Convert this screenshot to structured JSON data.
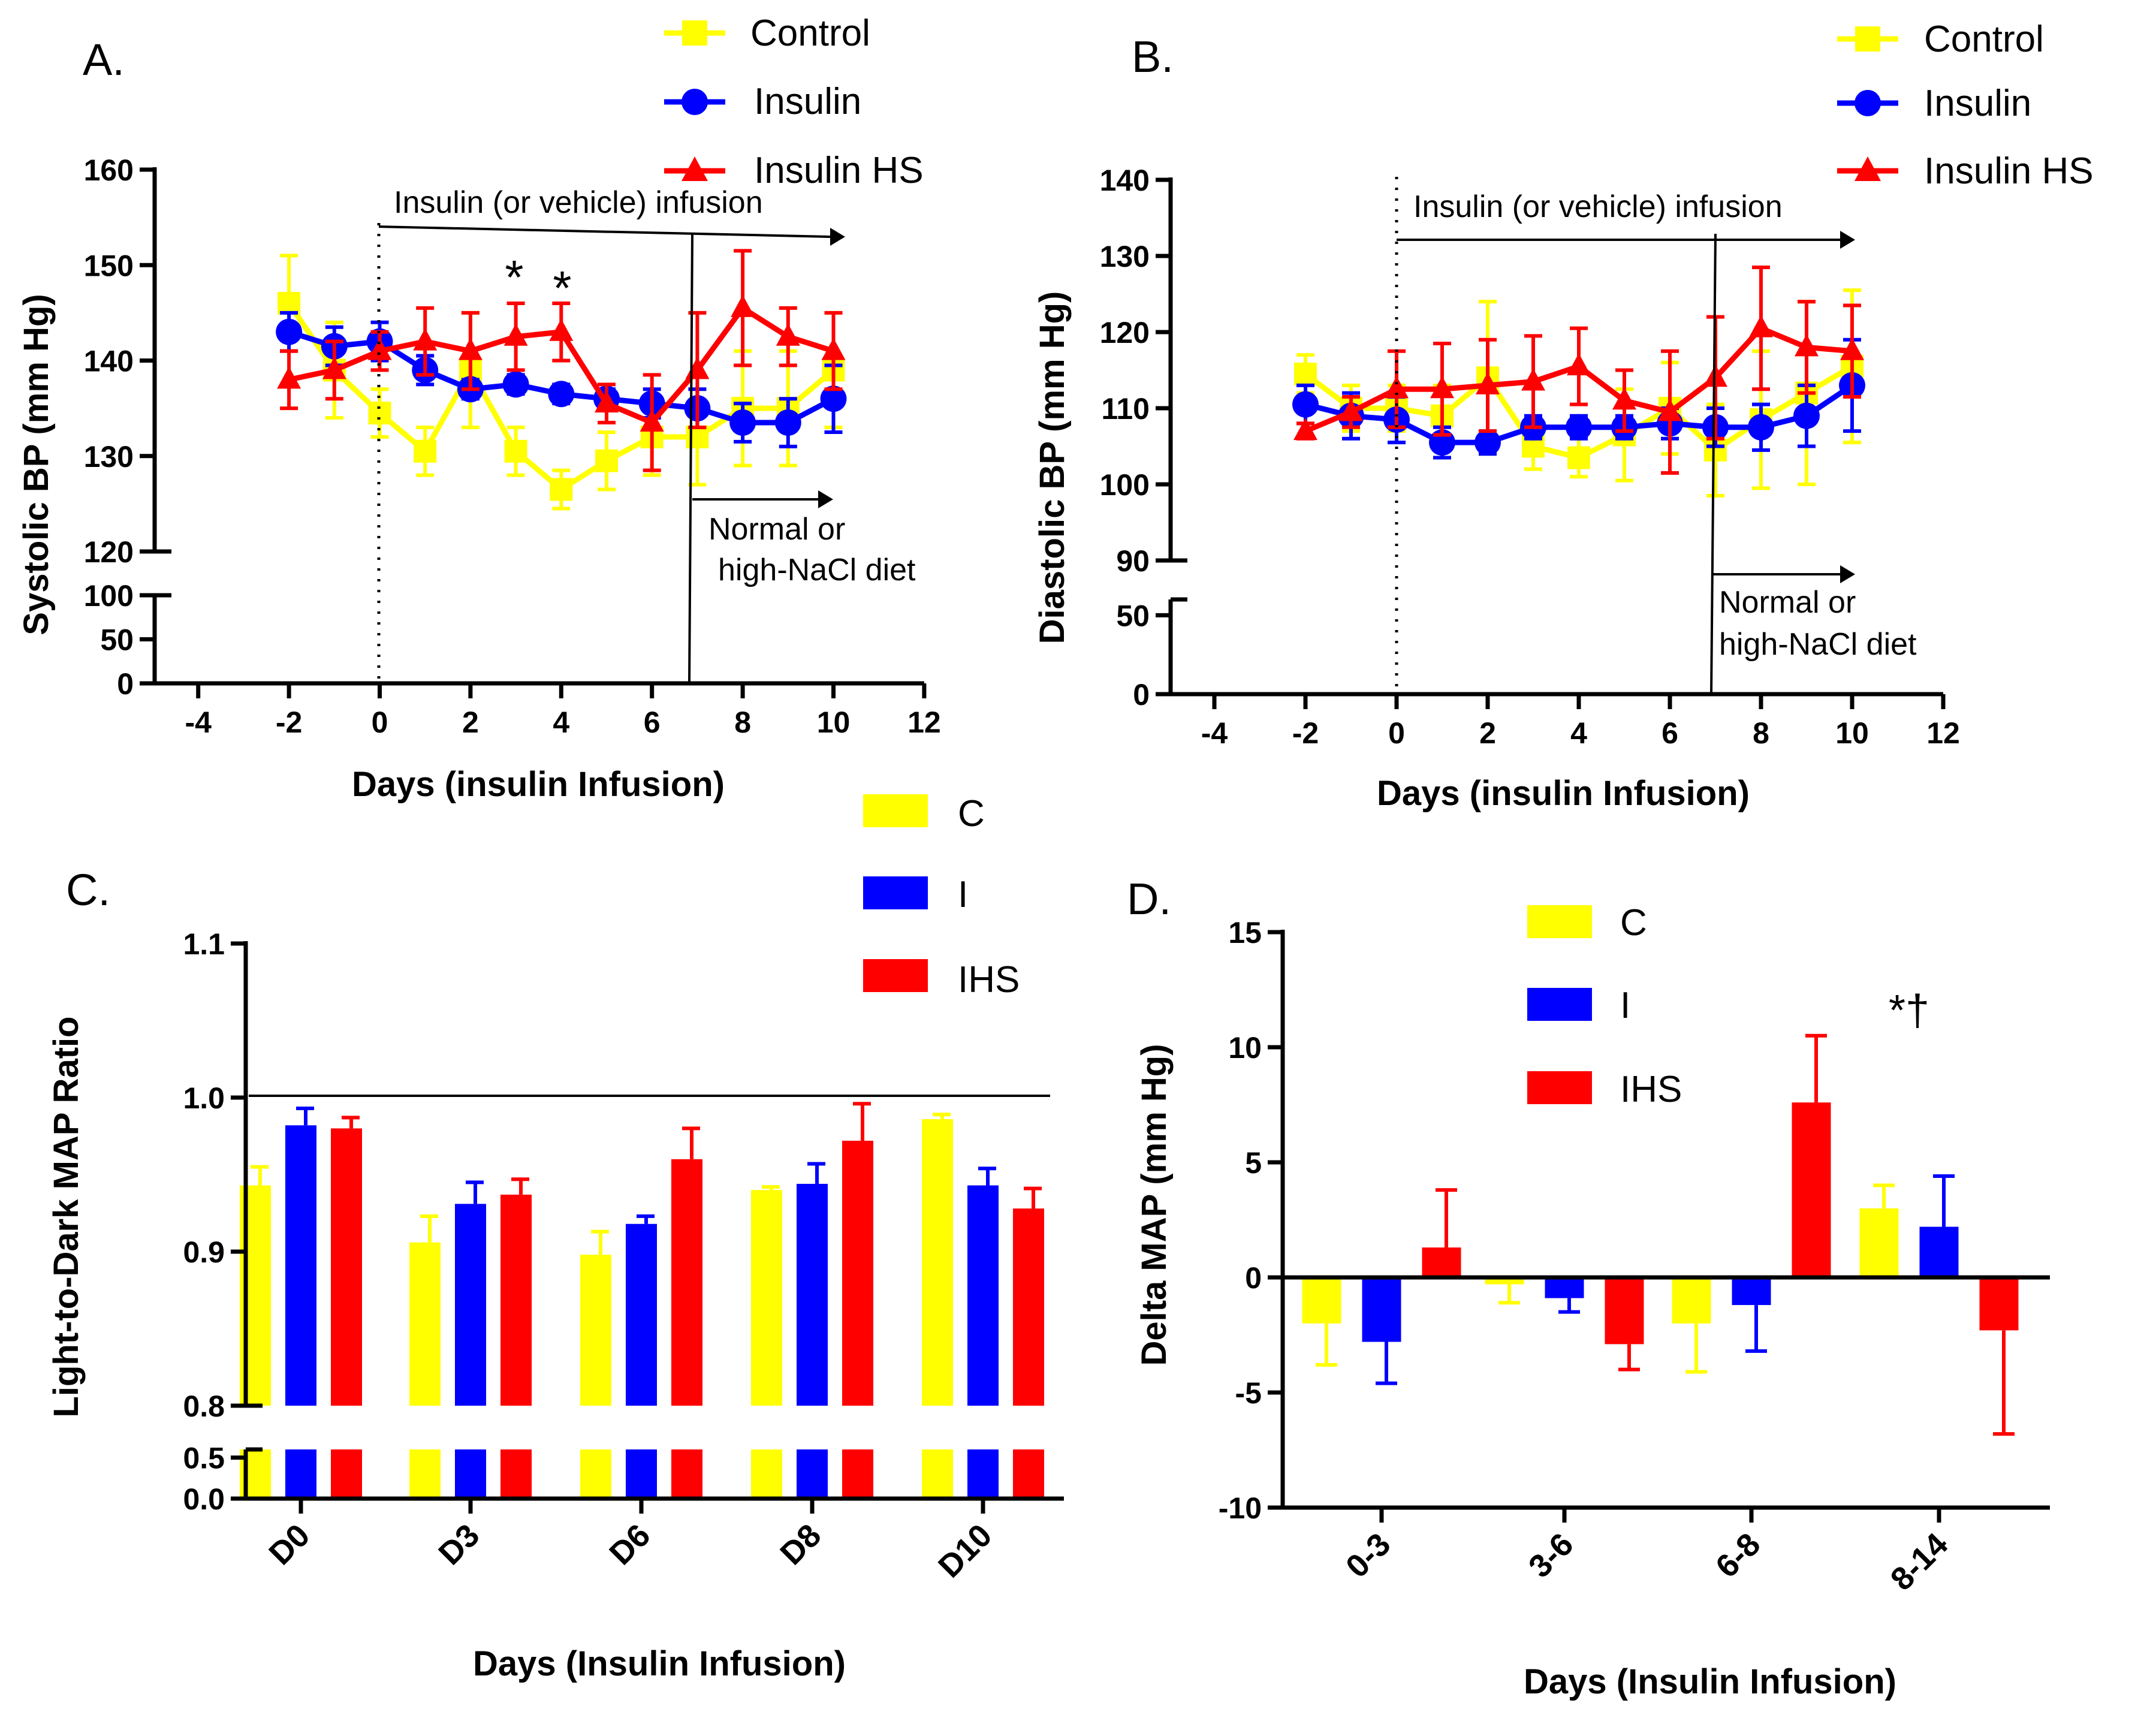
{
  "colors": {
    "control": "#FFFF00",
    "insulin": "#0000FF",
    "insulin_hs": "#FF0000",
    "axis": "#000000"
  },
  "chart_data": [
    {
      "id": "A",
      "panel_label": "A.",
      "type": "line",
      "ylabel": "Systolic BP (mm Hg)",
      "xlabel": "Days (insulin Infusion)",
      "xlim": [
        -5,
        12
      ],
      "x_ticks": [
        -4,
        -2,
        0,
        2,
        4,
        6,
        8,
        10,
        12
      ],
      "x_tick_labels": [
        "-4",
        "-2",
        "0",
        "2",
        "4",
        "6",
        "8",
        "10",
        "12"
      ],
      "ylim_upper": [
        120,
        160
      ],
      "y_ticks_upper": [
        120,
        130,
        140,
        150,
        160
      ],
      "y_tick_labels_upper": [
        "120",
        "130",
        "140",
        "150",
        "160"
      ],
      "ylim_lower": [
        0,
        100
      ],
      "y_ticks_lower": [
        0,
        50,
        100
      ],
      "y_tick_labels_lower": [
        "0",
        "50",
        "100"
      ],
      "x": [
        -2,
        -1,
        0,
        1,
        2,
        3,
        4,
        5,
        6,
        7,
        8,
        9,
        10
      ],
      "series": [
        {
          "name": "Control",
          "marker": "square",
          "color_key": "control",
          "values": [
            146,
            139,
            134.5,
            130.5,
            139,
            130.5,
            126.5,
            129.5,
            132,
            132,
            135,
            135,
            139
          ],
          "errors": [
            5,
            5,
            2.5,
            2.5,
            6,
            2.5,
            2,
            3,
            4,
            5,
            6,
            6,
            6
          ]
        },
        {
          "name": "Insulin",
          "marker": "circle",
          "color_key": "insulin",
          "values": [
            143,
            141.5,
            142,
            139,
            137,
            137.5,
            136.5,
            136,
            135.5,
            135,
            133.5,
            133.5,
            136
          ],
          "errors": [
            2,
            2,
            2,
            1.5,
            1,
            1,
            1,
            1,
            1.5,
            2,
            2,
            2.5,
            3.5
          ]
        },
        {
          "name": "Insulin HS",
          "marker": "triangle",
          "color_key": "insulin_hs",
          "values": [
            138,
            139,
            141,
            142,
            141,
            142.5,
            143,
            135.5,
            133.5,
            139,
            145.5,
            142.5,
            141
          ],
          "errors": [
            3,
            3,
            2,
            3.5,
            4,
            3.5,
            3,
            2,
            5,
            6,
            6,
            3,
            4
          ]
        }
      ],
      "annotations": {
        "stars": [
          "*",
          "*"
        ],
        "infusion": "Insulin (or vehicle) infusion",
        "diet_line1": "Normal or",
        "diet_line2": "high-NaCl diet"
      },
      "legend": [
        "Control",
        "Insulin",
        "Insulin HS"
      ]
    },
    {
      "id": "B",
      "panel_label": "B.",
      "type": "line",
      "ylabel": "Diastolic BP (mm Hg)",
      "xlabel": "Days (insulin Infusion)",
      "xlim": [
        -5,
        12
      ],
      "x_ticks": [
        -4,
        -2,
        0,
        2,
        4,
        6,
        8,
        10,
        12
      ],
      "x_tick_labels": [
        "-4",
        "-2",
        "0",
        "2",
        "4",
        "6",
        "8",
        "10",
        "12"
      ],
      "ylim_upper": [
        90,
        140
      ],
      "y_ticks_upper": [
        90,
        100,
        110,
        120,
        130,
        140
      ],
      "y_tick_labels_upper": [
        "90",
        "100",
        "110",
        "120",
        "130",
        "140"
      ],
      "ylim_lower": [
        0,
        60
      ],
      "y_ticks_lower": [
        0,
        50
      ],
      "y_tick_labels_lower": [
        "0",
        "50"
      ],
      "x": [
        -2,
        -1,
        0,
        1,
        2,
        3,
        4,
        5,
        6,
        7,
        8,
        9,
        10
      ],
      "series": [
        {
          "name": "Control",
          "marker": "square",
          "color_key": "control",
          "values": [
            114.5,
            110,
            110,
            109,
            114,
            105,
            103.5,
            106.5,
            110,
            104.5,
            108.5,
            112,
            115.5
          ],
          "errors": [
            2.5,
            3,
            3,
            4,
            10,
            3,
            2.5,
            6,
            6,
            6,
            9,
            12,
            10
          ]
        },
        {
          "name": "Insulin",
          "marker": "circle",
          "color_key": "insulin",
          "values": [
            110.5,
            109,
            108.5,
            105.5,
            105.5,
            107.5,
            107.5,
            107.5,
            108,
            107.5,
            107.5,
            109,
            113
          ],
          "errors": [
            2.5,
            3,
            3,
            2,
            1.5,
            1.5,
            1.5,
            1.5,
            2,
            2.5,
            3,
            4,
            6
          ]
        },
        {
          "name": "Insulin HS",
          "marker": "triangle",
          "color_key": "insulin_hs",
          "values": [
            107,
            109.5,
            112.5,
            112.5,
            113,
            113.5,
            115.5,
            111,
            109.5,
            114,
            120.5,
            118,
            117.5
          ],
          "errors": [
            1,
            2,
            5,
            6,
            6,
            6,
            5,
            4,
            8,
            8,
            8,
            6,
            6
          ]
        }
      ],
      "annotations": {
        "infusion": "Insulin (or vehicle) infusion",
        "diet_line1": "Normal or",
        "diet_line2": "high-NaCl diet"
      },
      "legend": [
        "Control",
        "Insulin",
        "Insulin HS"
      ]
    },
    {
      "id": "C",
      "panel_label": "C.",
      "type": "bar",
      "ylabel": "Light-to-Dark MAP Ratio",
      "xlabel": "Days (Insulin Infusion)",
      "categories": [
        "D0",
        "D3",
        "D6",
        "D8",
        "D10"
      ],
      "ylim_upper": [
        0.8,
        1.1
      ],
      "y_ticks_upper": [
        0.8,
        0.9,
        1.0,
        1.1
      ],
      "y_tick_labels_upper": [
        "0.8",
        "0.9",
        "1.0",
        "1.1"
      ],
      "ylim_lower": [
        0,
        0.6
      ],
      "y_ticks_lower": [
        0.0,
        0.5
      ],
      "y_tick_labels_lower": [
        "0.0",
        "0.5"
      ],
      "reference_line": 1.0,
      "series": [
        {
          "name": "C",
          "color_key": "control",
          "values": [
            0.943,
            0.906,
            0.898,
            0.94,
            0.986
          ],
          "errors": [
            0.012,
            0.017,
            0.015,
            0.002,
            0.003
          ]
        },
        {
          "name": "I",
          "color_key": "insulin",
          "values": [
            0.982,
            0.931,
            0.918,
            0.944,
            0.943
          ],
          "errors": [
            0.011,
            0.014,
            0.005,
            0.013,
            0.011
          ]
        },
        {
          "name": "IHS",
          "color_key": "insulin_hs",
          "values": [
            0.98,
            0.937,
            0.96,
            0.972,
            0.928
          ],
          "errors": [
            0.007,
            0.01,
            0.02,
            0.024,
            0.013
          ]
        }
      ],
      "legend": [
        "C",
        "I",
        "IHS"
      ]
    },
    {
      "id": "D",
      "panel_label": "D.",
      "type": "bar",
      "ylabel": "Delta MAP (mm Hg)",
      "xlabel": "Days (Insulin Infusion)",
      "categories": [
        "0-3",
        "3-6",
        "6-8",
        "8-14"
      ],
      "ylim": [
        -10,
        15
      ],
      "y_ticks": [
        -10,
        -5,
        0,
        5,
        10,
        15
      ],
      "y_tick_labels": [
        "-10",
        "-5",
        "0",
        "5",
        "10",
        "15"
      ],
      "series": [
        {
          "name": "C",
          "color_key": "control",
          "values": [
            -2,
            -0.3,
            -2,
            3
          ],
          "errors": [
            1.8,
            0.8,
            2.1,
            1
          ]
        },
        {
          "name": "I",
          "color_key": "insulin",
          "values": [
            -2.8,
            -0.9,
            -1.2,
            2.2
          ],
          "errors": [
            1.8,
            0.6,
            2,
            2.2
          ]
        },
        {
          "name": "IHS",
          "color_key": "insulin_hs",
          "values": [
            1.3,
            -2.9,
            7.6,
            -2.3
          ],
          "errors": [
            2.5,
            1.1,
            2.9,
            4.5
          ]
        }
      ],
      "annotations": {
        "significance": "*†"
      },
      "legend": [
        "C",
        "I",
        "IHS"
      ]
    }
  ]
}
